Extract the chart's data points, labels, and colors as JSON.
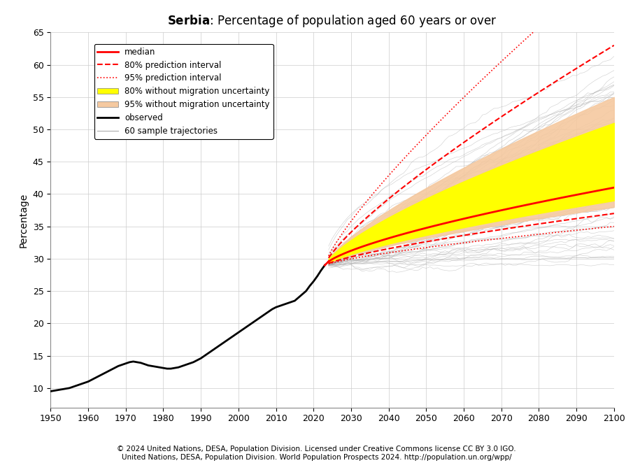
{
  "title_bold": "Serbia",
  "title_rest": ": Percentage of population aged 60 years or over",
  "ylabel": "Percentage",
  "xlim": [
    1950,
    2100
  ],
  "ylim": [
    7,
    65
  ],
  "yticks": [
    10,
    15,
    20,
    25,
    30,
    35,
    40,
    45,
    50,
    55,
    60,
    65
  ],
  "xticks": [
    1950,
    1960,
    1970,
    1980,
    1990,
    2000,
    2010,
    2020,
    2030,
    2040,
    2050,
    2060,
    2070,
    2080,
    2090,
    2100
  ],
  "footer_line1": "© 2024 United Nations, DESA, Population Division. Licensed under Creative Commons license CC BY 3.0 IGO.",
  "footer_line2_normal1": "United Nations, DESA, Population Division. ",
  "footer_line2_italic": "World Population Prospects 2024",
  "footer_line2_normal2": ". http://population.un.org/wpp/",
  "observed_color": "#000000",
  "median_color": "#ff0000",
  "pi80_color": "#ff0000",
  "pi95_color": "#ff0000",
  "band_95_nomig_color": "#f5c9a0",
  "band_80_nomig_color": "#ffff00",
  "trajectory_color": "#aaaaaa",
  "background_color": "#ffffff",
  "grid_color": "#cccccc"
}
